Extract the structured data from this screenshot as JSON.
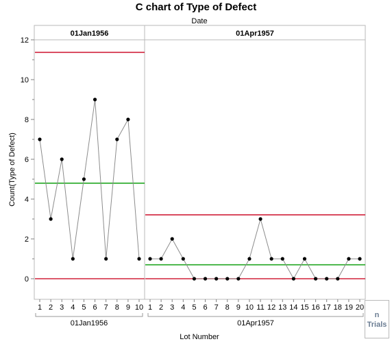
{
  "chart_data": {
    "type": "line",
    "title": "C chart of Type of Defect",
    "subtitle": "Date",
    "xlabel": "Lot Number",
    "ylabel": "Count(Type of Defect)",
    "ylim": [
      0,
      12
    ],
    "yticks": [
      0,
      2,
      4,
      6,
      8,
      10,
      12
    ],
    "grid": false,
    "groups": [
      {
        "name": "01Jan1956",
        "lots": [
          1,
          2,
          3,
          4,
          5,
          6,
          7,
          8,
          9,
          10
        ],
        "values": [
          7,
          3,
          6,
          1,
          5,
          9,
          1,
          7,
          8,
          1
        ],
        "center_line": 4.8,
        "ucl": 11.37,
        "lcl": 0
      },
      {
        "name": "01Apr1957",
        "lots": [
          1,
          2,
          3,
          4,
          5,
          6,
          7,
          8,
          9,
          10,
          11,
          12,
          13,
          14,
          15,
          16,
          17,
          18,
          19,
          20
        ],
        "values": [
          1,
          1,
          2,
          1,
          0,
          0,
          0,
          0,
          0,
          1,
          3,
          1,
          1,
          0,
          1,
          0,
          0,
          0,
          1,
          1
        ],
        "center_line": 0.7,
        "ucl": 3.21,
        "lcl": 0
      }
    ],
    "legend": {
      "title": "n",
      "label": "Trials"
    }
  }
}
